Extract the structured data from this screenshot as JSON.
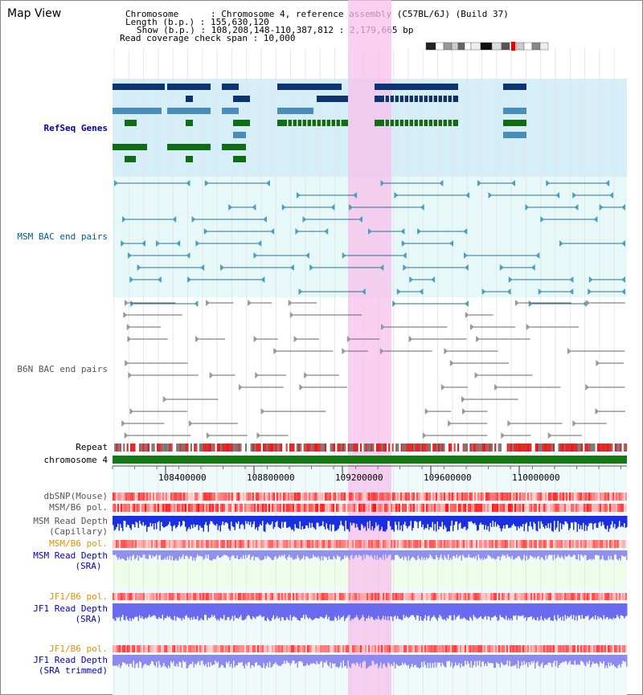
{
  "view_title": "Map View",
  "info": {
    "chromosome_label": "Chromosome      : Chromosome 4, reference assembly (C57BL/6J) (Build 37)",
    "length_label": "Length (b.p.) : 155,630,120",
    "show_label": "Show (b.p.) : 108,208,148-110,387,812 : 2,179,665 bp",
    "coverage_label": "Read coverage check span : 10,000"
  },
  "tracks": {
    "refseq": "RefSeq Genes",
    "msm_bac": "MSM BAC end pairs",
    "b6n_bac": "B6N BAC end pairs",
    "repeat": "Repeat",
    "chromosome": "chromosome 4",
    "dbsnp": "dbSNP(Mouse)",
    "msm_b6_pol_1": "MSM/B6 pol.",
    "msm_depth_cap_1": "MSM Read Depth",
    "msm_depth_cap_2": "(Capillary)",
    "msm_b6_pol_2": "MSM/B6 pol.",
    "msm_depth_sra_1": "MSM Read Depth",
    "msm_depth_sra_2": "(SRA)",
    "jf1_b6_pol_1": "JF1/B6 pol.",
    "jf1_depth_sra_1": "JF1 Read Depth",
    "jf1_depth_sra_2": "(SRA)",
    "jf1_b6_pol_2": "JF1/B6 pol.",
    "jf1_depth_trim_1": "JF1 Read Depth",
    "jf1_depth_trim_2": "(SRA trimmed)"
  },
  "ruler_ticks": [
    "108400000",
    "108800000",
    "109200000",
    "109600000",
    "110000000"
  ],
  "colors": {
    "refseq_label": "#0000aa",
    "msm_label": "#005a8c",
    "b6n_label": "#555555",
    "orange_label": "#e89000",
    "blue_label": "#0000cc",
    "highlight": "#f7c0ec"
  }
}
